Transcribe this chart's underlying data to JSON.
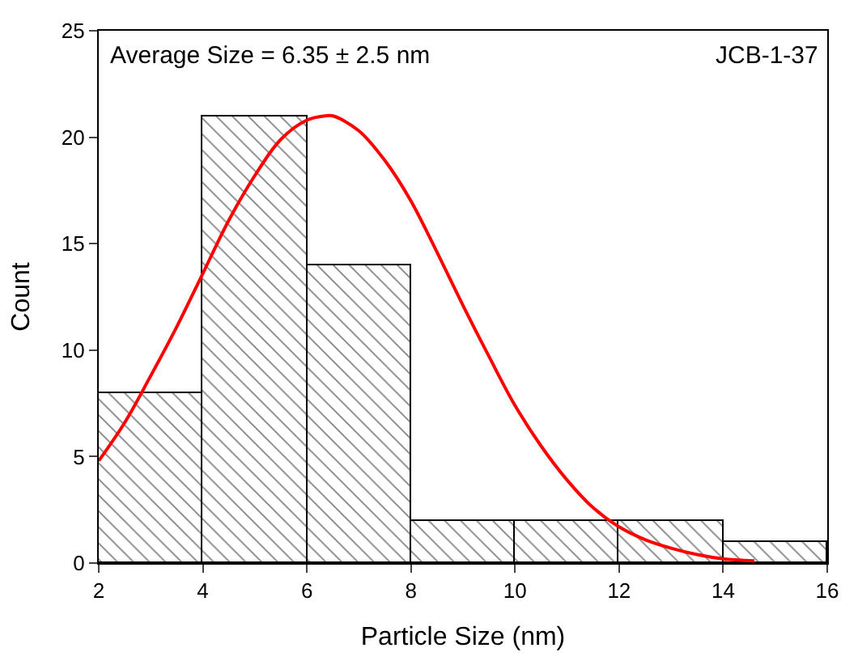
{
  "chart_data": {
    "type": "histogram",
    "xlabel": "Particle Size (nm)",
    "ylabel": "Count",
    "xlim": [
      2,
      16
    ],
    "xticks": [
      2,
      4,
      6,
      8,
      10,
      12,
      14,
      16
    ],
    "ylim": [
      0,
      25
    ],
    "yticks": [
      0,
      5,
      10,
      15,
      20,
      25
    ],
    "annotations": [
      "Average Size = 6.35 ± 2.5 nm",
      "JCB-1-37"
    ],
    "series": [
      {
        "color": "#000000",
        "bins": [
          2,
          4,
          6,
          8,
          10,
          12,
          14,
          16
        ],
        "values": [
          8,
          21,
          14,
          2,
          2,
          2,
          1
        ]
      },
      {
        "type": "line",
        "color": "#ff0000",
        "x": [
          2,
          2.5,
          3,
          3.5,
          4,
          4.5,
          5,
          5.5,
          6,
          6.35,
          6.5,
          7,
          7.5,
          8,
          8.5,
          9,
          9.5,
          10,
          10.5,
          11,
          11.5,
          12,
          12.5,
          13,
          13.5,
          14,
          14.6
        ],
        "values": [
          4.8,
          6.6,
          8.8,
          11.1,
          13.6,
          16.1,
          18.2,
          19.9,
          20.8,
          21,
          21,
          20.3,
          18.9,
          17,
          14.6,
          12.1,
          9.7,
          7.4,
          5.5,
          3.9,
          2.6,
          1.7,
          1.1,
          0.7,
          0.4,
          0.2,
          0.1
        ]
      }
    ]
  }
}
